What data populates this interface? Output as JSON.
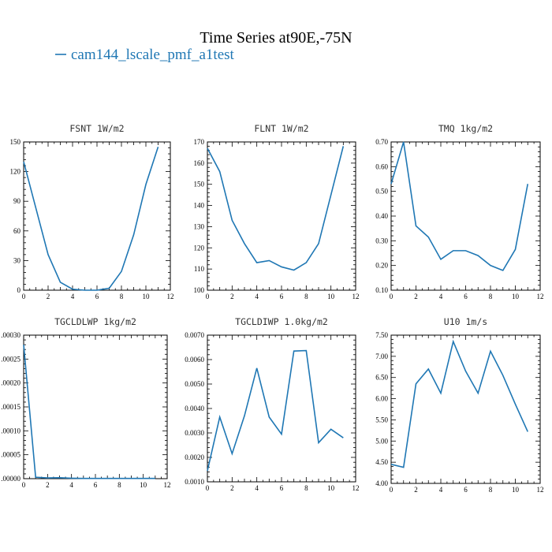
{
  "figure": {
    "title": "Time Series at90E,-75N",
    "legend_label": "cam144_lscale_pmf_a1test",
    "line_color": "#1f77b4"
  },
  "chart_data": [
    {
      "type": "line",
      "title": "FSNT   1W/m2",
      "x": [
        0,
        1,
        2,
        3,
        4,
        5,
        6,
        7,
        8,
        9,
        10,
        11
      ],
      "series": [
        {
          "values": [
            130,
            83,
            36,
            8,
            1,
            0,
            0,
            2,
            19,
            56,
            107,
            145
          ]
        }
      ],
      "xlim": [
        0,
        12
      ],
      "ylim": [
        0,
        150
      ],
      "xticks": [
        0,
        2,
        4,
        6,
        8,
        10,
        12
      ],
      "yticks": [
        0,
        30,
        60,
        90,
        120,
        150
      ],
      "ytick_labels": [
        "0",
        "30",
        "60",
        "90",
        "120",
        "150"
      ]
    },
    {
      "type": "line",
      "title": "FLNT   1W/m2",
      "x": [
        0,
        1,
        2,
        3,
        4,
        5,
        6,
        7,
        8,
        9,
        10,
        11
      ],
      "series": [
        {
          "values": [
            167,
            156,
            133,
            122,
            113,
            114,
            111,
            109.5,
            113,
            122,
            145,
            168
          ]
        }
      ],
      "xlim": [
        0,
        12
      ],
      "ylim": [
        100,
        170
      ],
      "xticks": [
        0,
        2,
        4,
        6,
        8,
        10,
        12
      ],
      "yticks": [
        100,
        110,
        120,
        130,
        140,
        150,
        160,
        170
      ],
      "ytick_labels": [
        "100",
        "110",
        "120",
        "130",
        "140",
        "150",
        "160",
        "170"
      ]
    },
    {
      "type": "line",
      "title": "TMQ   1kg/m2",
      "x": [
        0,
        1,
        2,
        3,
        4,
        5,
        6,
        7,
        8,
        9,
        10,
        11
      ],
      "series": [
        {
          "values": [
            0.53,
            0.7,
            0.36,
            0.315,
            0.225,
            0.26,
            0.26,
            0.24,
            0.2,
            0.18,
            0.265,
            0.53
          ]
        }
      ],
      "xlim": [
        0,
        12
      ],
      "ylim": [
        0.1,
        0.7
      ],
      "xticks": [
        0,
        2,
        4,
        6,
        8,
        10,
        12
      ],
      "yticks": [
        0.1,
        0.2,
        0.3,
        0.4,
        0.5,
        0.6,
        0.7
      ],
      "ytick_labels": [
        "0.10",
        "0.20",
        "0.30",
        "0.40",
        "0.50",
        "0.60",
        "0.70"
      ]
    },
    {
      "type": "line",
      "title": "TGCLDLWP   1kg/m2",
      "x": [
        0,
        1,
        2,
        3,
        4,
        5,
        6,
        7,
        8,
        9,
        10,
        11
      ],
      "series": [
        {
          "values": [
            0.00028,
            3e-06,
            1.5e-06,
            2e-06,
            1e-06,
            5e-07,
            5e-07,
            5e-07,
            5e-07,
            5e-07,
            5e-07,
            5e-07
          ]
        }
      ],
      "xlim": [
        0,
        12
      ],
      "ylim": [
        0,
        0.0003
      ],
      "xticks": [
        0,
        2,
        4,
        6,
        8,
        10,
        12
      ],
      "yticks": [
        0,
        5e-05,
        0.0001,
        0.00015,
        0.0002,
        0.00025,
        0.0003
      ],
      "ytick_labels": [
        ".00000",
        ".00005",
        ".00010",
        ".00015",
        ".00020",
        ".00025",
        ".00030"
      ]
    },
    {
      "type": "line",
      "title": "TGCLDIWP   1.0kg/m2",
      "x": [
        0,
        1,
        2,
        3,
        4,
        5,
        6,
        7,
        8,
        9,
        10,
        11
      ],
      "series": [
        {
          "values": [
            0.00145,
            0.00365,
            0.00215,
            0.0037,
            0.00565,
            0.00365,
            0.00295,
            0.00635,
            0.00637,
            0.0026,
            0.00315,
            0.0028
          ]
        }
      ],
      "xlim": [
        0,
        12
      ],
      "ylim": [
        0.001,
        0.007
      ],
      "xticks": [
        0,
        2,
        4,
        6,
        8,
        10,
        12
      ],
      "yticks": [
        0.001,
        0.002,
        0.003,
        0.004,
        0.005,
        0.006,
        0.007
      ],
      "ytick_labels": [
        "0.0010",
        "0.0020",
        "0.0030",
        "0.0040",
        "0.0050",
        "0.0060",
        "0.0070"
      ]
    },
    {
      "type": "line",
      "title": "U10   1m/s",
      "x": [
        0,
        1,
        2,
        3,
        4,
        5,
        6,
        7,
        8,
        9,
        10,
        11
      ],
      "series": [
        {
          "values": [
            4.45,
            4.38,
            6.35,
            6.7,
            6.13,
            7.35,
            6.65,
            6.13,
            7.12,
            6.55,
            5.87,
            5.22
          ]
        }
      ],
      "xlim": [
        0,
        12
      ],
      "ylim": [
        4.0,
        7.5
      ],
      "xticks": [
        0,
        2,
        4,
        6,
        8,
        10,
        12
      ],
      "yticks": [
        4.0,
        4.5,
        5.0,
        5.5,
        6.0,
        6.5,
        7.0,
        7.5
      ],
      "ytick_labels": [
        "4.00",
        "4.50",
        "5.00",
        "5.50",
        "6.00",
        "6.50",
        "7.00",
        "7.50"
      ]
    }
  ]
}
